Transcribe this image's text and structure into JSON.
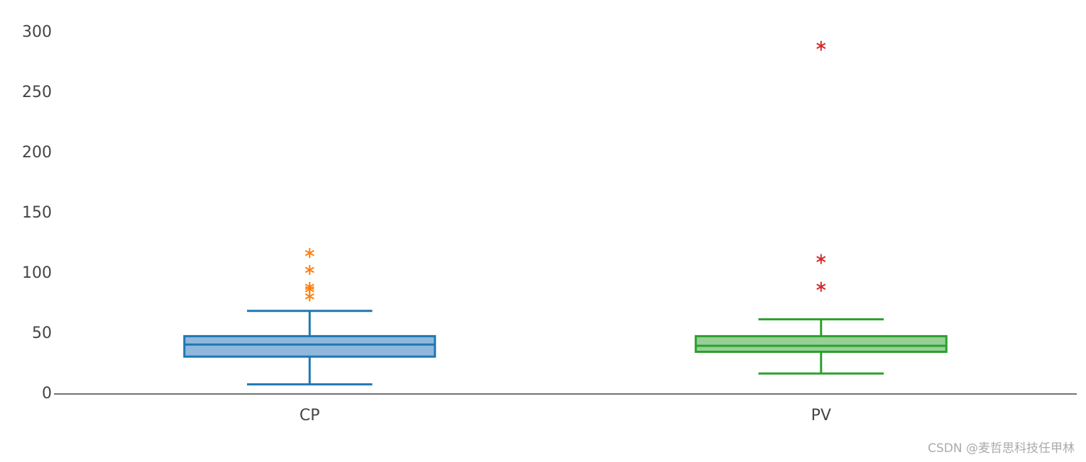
{
  "chart_data": {
    "type": "box",
    "categories": [
      "CP",
      "PV"
    ],
    "series": [
      {
        "name": "CP",
        "color": "#1f77b4",
        "fill": "#8fb8dc",
        "outlier_color": "#ff7f0e",
        "whisker_low": 8,
        "q1": 31,
        "median": 41,
        "q3": 48,
        "whisker_high": 69,
        "outliers": [
          117,
          103,
          89,
          87,
          81
        ]
      },
      {
        "name": "PV",
        "color": "#2ca02c",
        "fill": "#96d096",
        "outlier_color": "#d62728",
        "whisker_low": 17,
        "q1": 35,
        "median": 40,
        "q3": 48,
        "whisker_high": 62,
        "outliers": [
          289,
          112,
          89
        ]
      }
    ],
    "ylim": [
      0,
      310
    ],
    "yticks": [
      0,
      50,
      100,
      150,
      200,
      250,
      300
    ],
    "grid": false,
    "watermark": "CSDN @麦哲思科技任甲林"
  }
}
